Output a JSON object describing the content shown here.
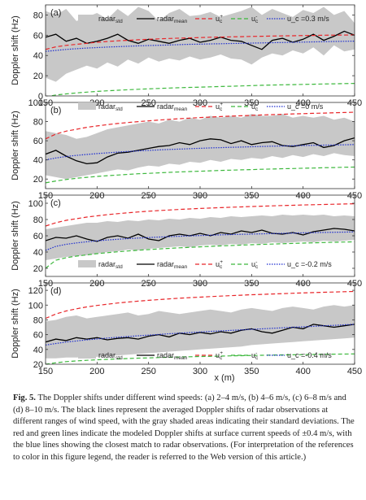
{
  "chart_data": [
    {
      "type": "line",
      "panel_label": "(a)",
      "ylabel": "Doppler shift (Hz)",
      "xlim": [
        150,
        450
      ],
      "ylim": [
        0,
        90
      ],
      "xticks": [
        150,
        200,
        250,
        300,
        350,
        400,
        450
      ],
      "yticks": [
        0,
        20,
        40,
        60,
        80
      ],
      "x": [
        150,
        160,
        170,
        180,
        190,
        200,
        210,
        220,
        230,
        240,
        250,
        260,
        270,
        280,
        290,
        300,
        310,
        320,
        330,
        340,
        350,
        360,
        370,
        380,
        390,
        400,
        410,
        420,
        430,
        440,
        450
      ],
      "series": [
        {
          "name": "radar_std",
          "type": "band",
          "lower": [
            18,
            14,
            22,
            26,
            30,
            27,
            33,
            29,
            36,
            32,
            38,
            34,
            37,
            35,
            39,
            36,
            38,
            41,
            37,
            36,
            31,
            38,
            42,
            40,
            45,
            42,
            48,
            40,
            50,
            44,
            46
          ],
          "upper": [
            84,
            80,
            86,
            74,
            78,
            82,
            76,
            86,
            79,
            88,
            84,
            74,
            82,
            86,
            79,
            80,
            83,
            78,
            81,
            84,
            88,
            80,
            86,
            82,
            78,
            85,
            82,
            88,
            80,
            84,
            72
          ]
        },
        {
          "name": "radar_mean",
          "values": [
            58,
            61,
            54,
            57,
            52,
            54,
            57,
            61,
            55,
            52,
            56,
            54,
            52,
            55,
            57,
            53,
            55,
            58,
            55,
            54,
            50,
            46,
            55,
            57,
            53,
            56,
            61,
            55,
            59,
            64,
            60
          ]
        },
        {
          "name": "u_c^+",
          "values": [
            46,
            48.5,
            50,
            51,
            52,
            53,
            53.8,
            54.5,
            55,
            55.5,
            56,
            56.4,
            56.8,
            57.1,
            57.4,
            57.7,
            58,
            58.2,
            58.4,
            58.6,
            58.8,
            59,
            59.2,
            59.4,
            59.5,
            59.7,
            59.8,
            60,
            60.1,
            60.2,
            60.3
          ]
        },
        {
          "name": "u_c^-",
          "values": [
            -1,
            1,
            2,
            3,
            3.8,
            4.5,
            5.1,
            5.6,
            6.1,
            6.6,
            7,
            7.4,
            7.8,
            8.1,
            8.4,
            8.7,
            9,
            9.3,
            9.6,
            9.9,
            10.2,
            10.5,
            10.8,
            11,
            11.2,
            11.4,
            11.6,
            11.8,
            12,
            12.2,
            12.4
          ]
        },
        {
          "name": "u_c",
          "label": "u_c =0.3 m/s",
          "values": [
            44,
            45,
            46,
            46.7,
            47.3,
            47.8,
            48.3,
            48.7,
            49.1,
            49.5,
            49.8,
            50.1,
            50.4,
            50.7,
            51,
            51.2,
            51.4,
            51.6,
            51.8,
            52,
            52.2,
            52.4,
            52.6,
            52.8,
            53,
            53.2,
            53.4,
            53.6,
            53.8,
            54,
            54.2
          ]
        }
      ]
    },
    {
      "type": "line",
      "panel_label": "(b)",
      "ylabel": "Doppler shift (Hz)",
      "xlim": [
        150,
        450
      ],
      "ylim": [
        10,
        100
      ],
      "xticks": [
        150,
        200,
        250,
        300,
        350,
        400,
        450
      ],
      "yticks": [
        20,
        40,
        60,
        80,
        100
      ],
      "x": [
        150,
        160,
        170,
        180,
        190,
        200,
        210,
        220,
        230,
        240,
        250,
        260,
        270,
        280,
        290,
        300,
        310,
        320,
        330,
        340,
        350,
        360,
        370,
        380,
        390,
        400,
        410,
        420,
        430,
        440,
        450
      ],
      "series": [
        {
          "name": "radar_std",
          "type": "band",
          "lower": [
            24,
            22,
            20,
            22,
            24,
            26,
            28,
            30,
            29,
            32,
            34,
            33,
            36,
            35,
            38,
            37,
            40,
            38,
            41,
            40,
            42,
            41,
            44,
            42,
            45,
            43,
            46,
            44,
            47,
            45,
            44
          ],
          "upper": [
            70,
            68,
            66,
            62,
            64,
            68,
            72,
            74,
            76,
            78,
            80,
            78,
            82,
            80,
            84,
            82,
            86,
            84,
            86,
            84,
            88,
            86,
            86,
            88,
            84,
            86,
            84,
            86,
            82,
            84,
            80
          ]
        },
        {
          "name": "radar_mean",
          "values": [
            46,
            50,
            44,
            39,
            36,
            37,
            43,
            47,
            48,
            50,
            52,
            54,
            55,
            58,
            56,
            60,
            62,
            61,
            57,
            60,
            56,
            58,
            59,
            55,
            54,
            56,
            58,
            53,
            55,
            60,
            63
          ]
        },
        {
          "name": "u_c^+",
          "values": [
            62,
            67,
            70,
            72,
            74,
            75.5,
            76.8,
            78,
            79,
            80,
            80.8,
            81.6,
            82.3,
            83,
            83.6,
            84.2,
            84.7,
            85.2,
            85.7,
            86.1,
            86.5,
            86.9,
            87.3,
            87.6,
            88,
            88.3,
            88.6,
            88.9,
            89.2,
            89.5,
            89.8
          ]
        },
        {
          "name": "u_c^-",
          "values": [
            16,
            18,
            19.5,
            20.8,
            21.8,
            22.7,
            23.5,
            24.2,
            24.9,
            25.5,
            26,
            26.5,
            27,
            27.4,
            27.8,
            28.2,
            28.6,
            29,
            29.3,
            29.6,
            29.9,
            30.2,
            30.5,
            30.8,
            31,
            31.3,
            31.5,
            31.8,
            32,
            32.3,
            32.5
          ]
        },
        {
          "name": "u_c",
          "label": "u_c =0 m/s",
          "values": [
            40,
            42,
            43.5,
            44.7,
            45.7,
            46.6,
            47.4,
            48.1,
            48.8,
            49.4,
            49.9,
            50.4,
            50.9,
            51.3,
            51.7,
            52.1,
            52.5,
            52.8,
            53.1,
            53.4,
            53.7,
            54,
            54.3,
            54.5,
            54.8,
            55,
            55.2,
            55.4,
            55.6,
            55.8,
            56
          ]
        }
      ]
    },
    {
      "type": "line",
      "panel_label": "(c)",
      "ylabel": "Doppler shift (Hz)",
      "xlim": [
        150,
        450
      ],
      "ylim": [
        10,
        110
      ],
      "xticks": [
        150,
        200,
        250,
        300,
        350,
        400,
        450
      ],
      "yticks": [
        20,
        40,
        60,
        80,
        100
      ],
      "x": [
        150,
        160,
        170,
        180,
        190,
        200,
        210,
        220,
        230,
        240,
        250,
        260,
        270,
        280,
        290,
        300,
        310,
        320,
        330,
        340,
        350,
        360,
        370,
        380,
        390,
        400,
        410,
        420,
        430,
        440,
        450
      ],
      "series": [
        {
          "name": "radar_std",
          "type": "band",
          "lower": [
            30,
            32,
            34,
            35,
            36,
            38,
            40,
            41,
            43,
            42,
            44,
            45,
            46,
            47,
            46,
            48,
            49,
            48,
            50,
            49,
            51,
            50,
            52,
            51,
            52,
            53,
            52,
            54,
            53,
            54,
            55
          ],
          "upper": [
            68,
            70,
            72,
            74,
            76,
            76,
            78,
            77,
            79,
            78,
            80,
            79,
            81,
            80,
            82,
            81,
            83,
            82,
            84,
            83,
            84,
            85,
            84,
            86,
            85,
            86,
            85,
            86,
            84,
            85,
            84
          ]
        },
        {
          "name": "radar_mean",
          "values": [
            54,
            58,
            57,
            60,
            56,
            53,
            58,
            60,
            57,
            62,
            56,
            54,
            60,
            62,
            60,
            63,
            60,
            64,
            62,
            66,
            64,
            67,
            63,
            62,
            64,
            61,
            65,
            67,
            69,
            68,
            66
          ]
        },
        {
          "name": "u_c^+",
          "values": [
            72,
            76,
            79,
            81,
            83,
            84.5,
            86,
            87.2,
            88.3,
            89.3,
            90.2,
            91,
            91.7,
            92.4,
            93,
            93.6,
            94.1,
            94.6,
            95.1,
            95.5,
            96,
            96.4,
            96.8,
            97.2,
            97.5,
            97.9,
            98.2,
            98.5,
            98.8,
            99.1,
            99.4
          ]
        },
        {
          "name": "u_c^-",
          "values": [
            20,
            30,
            33,
            35,
            36.5,
            38,
            39.2,
            40.3,
            41.3,
            42.2,
            43,
            43.8,
            44.5,
            45.2,
            45.8,
            46.4,
            47,
            47.5,
            48,
            48.5,
            49,
            49.4,
            49.8,
            50.2,
            50.6,
            51,
            51.3,
            51.7,
            52,
            52.3,
            52.6
          ]
        },
        {
          "name": "u_c",
          "label": "u_c =-0.2 m/s",
          "values": [
            42,
            47,
            49.5,
            51.2,
            52.6,
            53.8,
            54.8,
            55.7,
            56.5,
            57.2,
            57.8,
            58.4,
            58.9,
            59.4,
            59.9,
            60.3,
            60.7,
            61.1,
            61.5,
            61.8,
            62.1,
            62.4,
            62.7,
            63,
            63.3,
            63.6,
            63.8,
            64.1,
            64.3,
            64.5,
            64.8
          ]
        }
      ]
    },
    {
      "type": "line",
      "panel_label": "(d)",
      "ylabel": "Doppler shift (Hz)",
      "xlabel": "x (m)",
      "xlim": [
        150,
        450
      ],
      "ylim": [
        20,
        130
      ],
      "xticks": [
        150,
        200,
        250,
        300,
        350,
        400,
        450
      ],
      "yticks": [
        20,
        40,
        60,
        80,
        100,
        120
      ],
      "x": [
        150,
        160,
        170,
        180,
        190,
        200,
        210,
        220,
        230,
        240,
        250,
        260,
        270,
        280,
        290,
        300,
        310,
        320,
        330,
        340,
        350,
        360,
        370,
        380,
        390,
        400,
        410,
        420,
        430,
        440,
        450
      ],
      "series": [
        {
          "name": "radar_std",
          "type": "band",
          "lower": [
            28,
            28,
            29,
            29,
            30,
            30,
            31,
            32,
            33,
            34,
            35,
            36,
            37,
            38,
            39,
            40,
            41,
            42,
            43,
            44,
            46,
            47,
            48,
            49,
            50,
            51,
            52,
            53,
            54,
            55,
            56
          ],
          "upper": [
            78,
            80,
            84,
            86,
            82,
            84,
            86,
            88,
            90,
            86,
            88,
            92,
            90,
            88,
            90,
            92,
            94,
            92,
            90,
            94,
            96,
            94,
            92,
            96,
            98,
            96,
            94,
            98,
            100,
            98,
            100
          ]
        },
        {
          "name": "radar_mean",
          "values": [
            50,
            54,
            52,
            56,
            54,
            56,
            53,
            55,
            56,
            54,
            58,
            60,
            57,
            62,
            60,
            63,
            61,
            64,
            62,
            66,
            68,
            64,
            62,
            66,
            70,
            68,
            74,
            72,
            70,
            72,
            74
          ]
        },
        {
          "name": "u_c^+",
          "values": [
            82,
            88,
            92,
            95,
            97.5,
            99.5,
            101.2,
            102.8,
            104.2,
            105.4,
            106.5,
            107.5,
            108.4,
            109.3,
            110.1,
            110.8,
            111.5,
            112.2,
            112.8,
            113.4,
            114,
            114.5,
            115,
            115.5,
            116,
            116.5,
            116.9,
            117.3,
            117.7,
            118.1,
            118.5
          ]
        },
        {
          "name": "u_c^-",
          "values": [
            20,
            22,
            23.5,
            24.5,
            25.3,
            26,
            26.6,
            27.2,
            27.7,
            28.2,
            28.6,
            29,
            29.4,
            29.8,
            30.1,
            30.4,
            30.7,
            31,
            31.3,
            31.6,
            31.9,
            32.1,
            32.4,
            32.6,
            32.8,
            33,
            33.2,
            33.4,
            33.6,
            33.8,
            34
          ]
        },
        {
          "name": "u_c",
          "label": "u_c =-0.4 m/s",
          "values": [
            46,
            48,
            50,
            51.5,
            53,
            54.2,
            55.4,
            56.5,
            57.5,
            58.5,
            59.4,
            60.3,
            61.2,
            62,
            62.8,
            63.6,
            64.4,
            65.1,
            65.8,
            66.5,
            67.2,
            67.9,
            68.6,
            69.3,
            70,
            70.6,
            71.3,
            72,
            72.6,
            73.3,
            74
          ]
        }
      ]
    }
  ],
  "legend": {
    "band": "radar",
    "band_sub": "std",
    "mean": "radar",
    "mean_sub": "mean",
    "up": "u",
    "up_sub": "c",
    "up_sup": "+",
    "down": "u",
    "down_sub": "c",
    "down_sup": "-"
  },
  "caption": {
    "label": "Fig. 5.",
    "text": "The Doppler shifts under different wind speeds: (a) 2–4 m/s, (b) 4–6 m/s, (c) 6–8 m/s and (d) 8–10 m/s. The black lines represent the averaged Doppler shifts of radar observations at different ranges of wind speed, with the gray shaded areas indicating their standard deviations. The red and green lines indicate the modeled Doppler shifts at surface current speeds of ±0.4 m/s, with the blue lines showing the closest match to radar observations. (For interpretation of the references to color in this figure legend, the reader is referred to the Web version of this article.)"
  },
  "colors": {
    "band": "#c8c8c8",
    "mean": "#000000",
    "up": "#e8262a",
    "down": "#3cb83c",
    "fit": "#1f2fd0"
  }
}
